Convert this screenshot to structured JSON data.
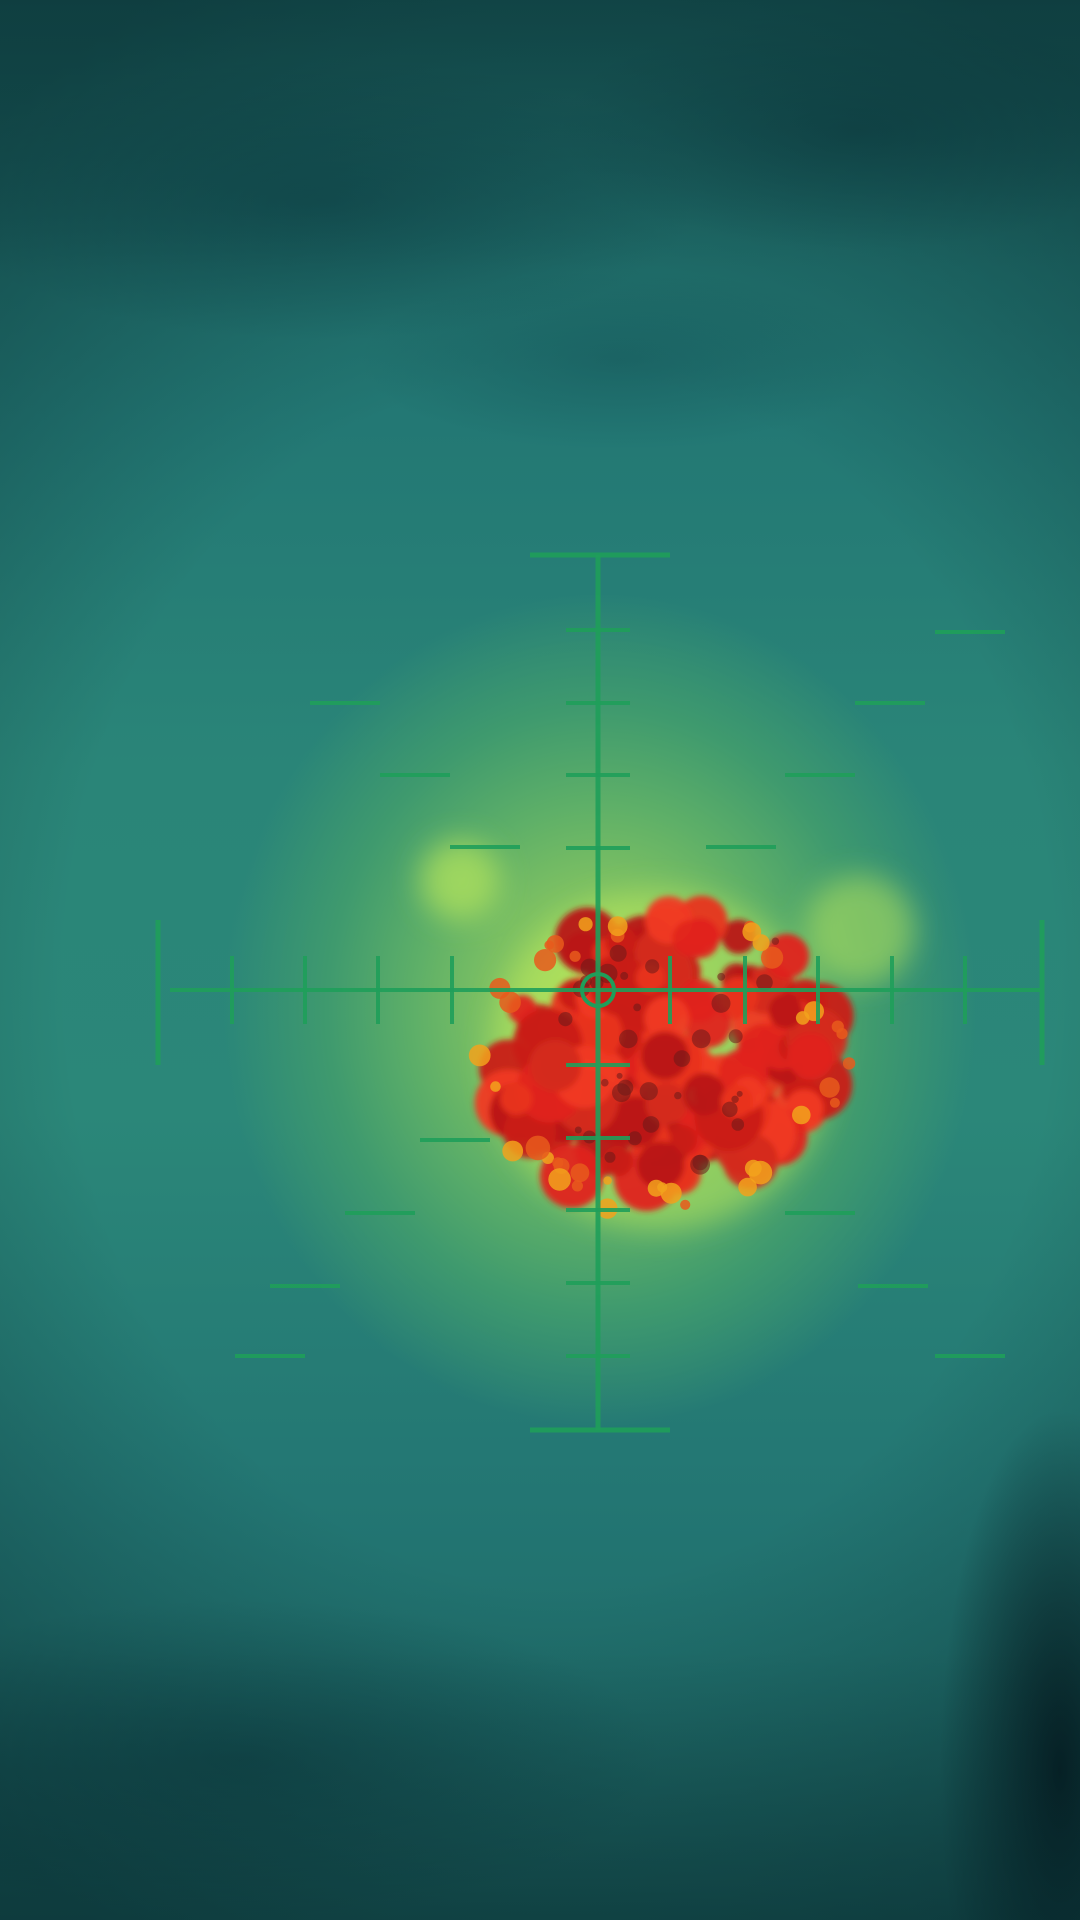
{
  "scene": {
    "type": "thermal-camera-view",
    "palette": {
      "background": "#237673",
      "glow": "#b7e65b",
      "reticle": "#1f9e5a",
      "hotspot": "#e0241e",
      "hotspot_edge": "#f2a21c"
    },
    "reticle": {
      "style": "crosshair-with-stadia-marks"
    },
    "target": {
      "description_icon": "thermal-hotspot-icon"
    }
  }
}
